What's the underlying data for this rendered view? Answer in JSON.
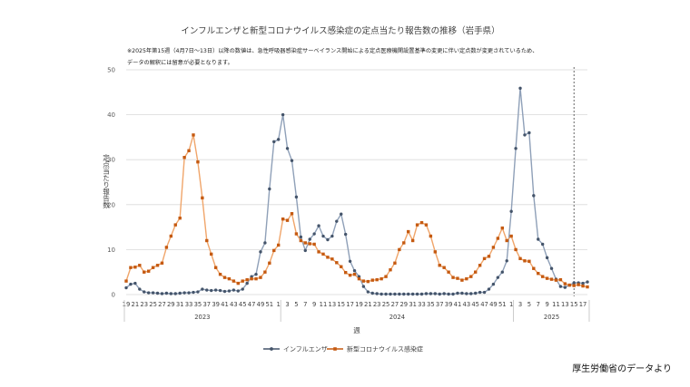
{
  "chart_data": {
    "type": "line",
    "title": "インフルエンザと新型コロナウイルス感染症の定点当たり報告数の推移（岩手県）",
    "notes": [
      "※2025年第15週（4月7日〜13日）以降の数値は、急性呼吸器感染症サーベイランス開始による定点医療機関設置基準の変更に伴い定点数が変更されているため、",
      "データの解釈には留意が必要となります。"
    ],
    "xlabel": "週",
    "ylabel": "定点当たり報告数",
    "ylim": [
      0,
      50
    ],
    "yticks": [
      0,
      10,
      20,
      30,
      40,
      50
    ],
    "x_tick_labels": [
      "19",
      "21",
      "23",
      "25",
      "27",
      "29",
      "31",
      "33",
      "35",
      "37",
      "39",
      "41",
      "43",
      "45",
      "47",
      "49",
      "51",
      "1",
      "3",
      "5",
      "7",
      "9",
      "11",
      "13",
      "15",
      "17",
      "19",
      "21",
      "23",
      "25",
      "27",
      "29",
      "31",
      "33",
      "35",
      "37",
      "39",
      "41",
      "43",
      "45",
      "47",
      "49",
      "51",
      "1",
      "3",
      "5",
      "7",
      "9",
      "11",
      "13",
      "15",
      "17"
    ],
    "years": [
      {
        "label": "2023",
        "start": 0,
        "end": 34
      },
      {
        "label": "2024",
        "start": 35,
        "end": 86
      },
      {
        "label": "2025",
        "start": 87,
        "end": 103
      }
    ],
    "marker_line_index": 100,
    "series": [
      {
        "name": "インフルエンザ",
        "color": "#44546a",
        "marker": "circle",
        "values": [
          1.5,
          2.3,
          2.5,
          1.2,
          0.6,
          0.4,
          0.4,
          0.3,
          0.2,
          0.3,
          0.2,
          0.2,
          0.3,
          0.4,
          0.4,
          0.5,
          0.6,
          1.2,
          1.0,
          0.9,
          1.0,
          0.9,
          0.7,
          0.8,
          1.0,
          0.8,
          1.2,
          2.5,
          4.0,
          4.5,
          9.5,
          11.5,
          23.5,
          34.0,
          34.5,
          40.0,
          32.5,
          29.8,
          21.7,
          12.8,
          9.8,
          12.3,
          13.5,
          15.3,
          13.0,
          12.2,
          13.0,
          16.3,
          17.9,
          13.4,
          7.4,
          5.3,
          4.0,
          1.8,
          0.6,
          0.3,
          0.2,
          0.1,
          0.1,
          0.1,
          0.1,
          0.1,
          0.1,
          0.1,
          0.1,
          0.1,
          0.1,
          0.2,
          0.2,
          0.2,
          0.1,
          0.2,
          0.1,
          0.1,
          0.3,
          0.3,
          0.2,
          0.2,
          0.3,
          0.5,
          0.5,
          1.2,
          2.3,
          3.8,
          5.0,
          7.5,
          18.5,
          32.5,
          45.9,
          35.5,
          36.0,
          22.0,
          12.3,
          11.2,
          8.2,
          5.8,
          3.4,
          1.8,
          1.6,
          2.1,
          2.6,
          2.6,
          2.5,
          2.8
        ]
      },
      {
        "name": "新型コロナウイルス感染症",
        "color": "#c55a11",
        "marker": "square",
        "values": [
          3.0,
          6.0,
          6.1,
          6.5,
          5.0,
          5.2,
          6.0,
          6.5,
          7.0,
          10.5,
          13.0,
          15.5,
          17.0,
          30.5,
          32.0,
          35.5,
          29.5,
          21.5,
          12.0,
          9.0,
          6.0,
          4.5,
          3.8,
          3.5,
          3.0,
          2.5,
          3.0,
          3.3,
          3.5,
          3.5,
          3.8,
          5.0,
          7.0,
          9.8,
          11.0,
          16.8,
          16.5,
          18.0,
          13.5,
          12.0,
          11.5,
          11.3,
          11.2,
          9.5,
          9.0,
          8.3,
          7.9,
          7.1,
          6.2,
          4.9,
          4.3,
          4.5,
          3.5,
          3.0,
          2.9,
          3.2,
          3.3,
          3.5,
          4.0,
          5.5,
          7.0,
          10.0,
          11.5,
          14.0,
          12.0,
          15.5,
          16.0,
          15.5,
          13.0,
          9.5,
          6.5,
          6.0,
          5.0,
          3.8,
          3.6,
          3.2,
          3.5,
          4.0,
          5.0,
          6.5,
          8.0,
          8.5,
          10.5,
          12.5,
          14.8,
          12.0,
          13.0,
          10.0,
          8.0,
          7.5,
          7.4,
          5.8,
          4.7,
          4.0,
          3.6,
          3.4,
          3.2,
          3.3,
          2.4,
          2.1,
          2.0,
          2.2,
          1.9,
          1.7
        ]
      }
    ]
  },
  "source_text": "厚生労働省のデータより"
}
